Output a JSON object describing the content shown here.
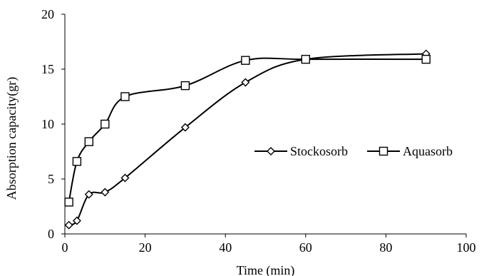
{
  "chart_data": {
    "type": "line",
    "title": "",
    "xlabel": "Time (min)",
    "ylabel": "Absorption capacity(gr)",
    "xlim": [
      0,
      100
    ],
    "ylim": [
      0,
      20
    ],
    "x_ticks": [
      0,
      20,
      40,
      60,
      80,
      100
    ],
    "y_ticks": [
      0,
      5,
      10,
      15,
      20
    ],
    "x_tick_labels": [
      "0",
      "20",
      "40",
      "60",
      "80",
      "100"
    ],
    "y_tick_labels": [
      "0",
      "5",
      "10",
      "15",
      "20"
    ],
    "grid": false,
    "smooth": true,
    "legend_position": "right",
    "series": [
      {
        "name": "Stockosorb",
        "marker": "diamond",
        "color": "#000000",
        "x": [
          1,
          3,
          6,
          10,
          15,
          30,
          45,
          60,
          90
        ],
        "y": [
          0.8,
          1.2,
          3.6,
          3.8,
          5.1,
          9.7,
          13.8,
          15.9,
          16.4
        ]
      },
      {
        "name": "Aquasorb",
        "marker": "square",
        "color": "#000000",
        "x": [
          1,
          3,
          6,
          10,
          15,
          30,
          45,
          60,
          90
        ],
        "y": [
          2.9,
          6.6,
          8.4,
          10.0,
          12.5,
          13.5,
          15.8,
          15.9,
          15.9
        ]
      }
    ]
  }
}
